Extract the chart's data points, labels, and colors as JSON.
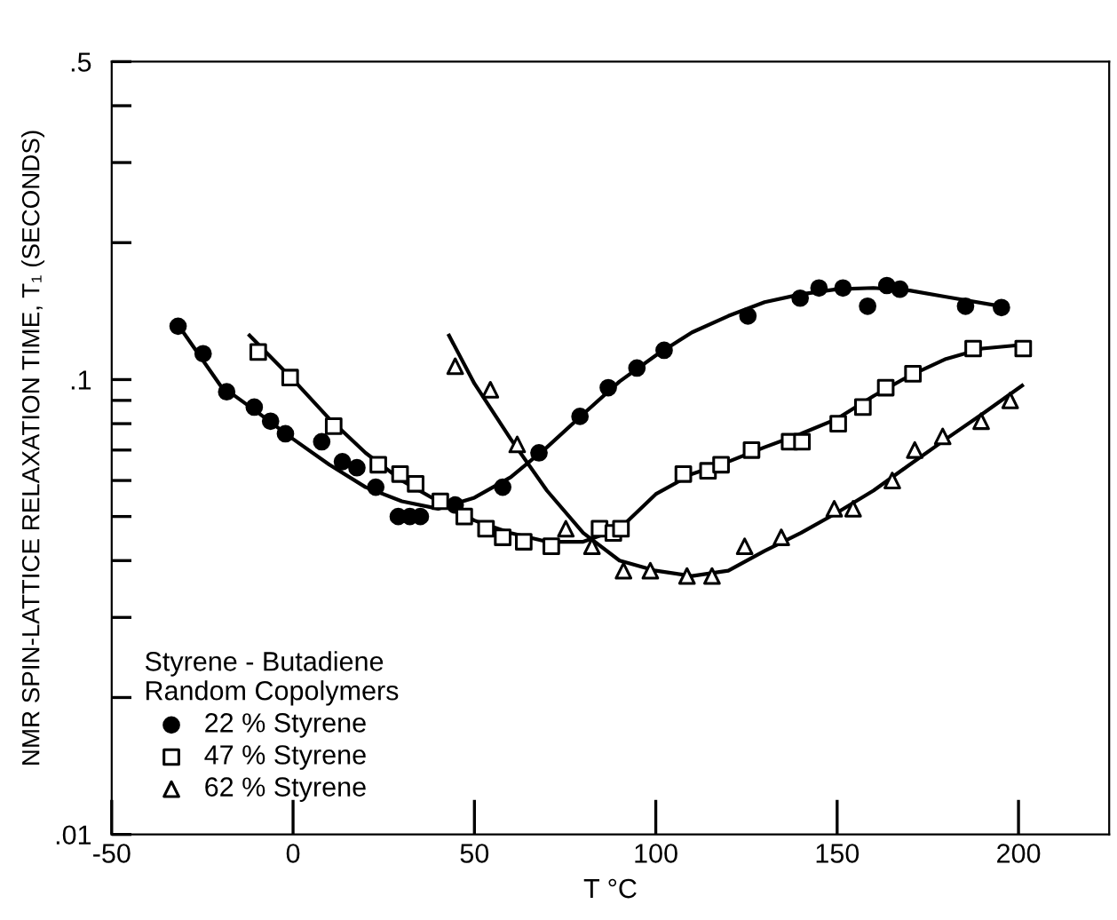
{
  "chart_data": {
    "type": "scatter",
    "xlabel": "T °C",
    "ylabel": "NMR SPIN-LATTICE RELAXATION TIME, T₁ (SECONDS)",
    "legend_title": "Styrene - Butadiene\nRandom Copolymers",
    "legend": "bottom left",
    "log": "y",
    "grid": false,
    "xlim": [
      -50,
      225
    ],
    "xticks": [
      -50,
      0,
      50,
      100,
      150,
      200
    ],
    "ylim": [
      0.01,
      0.5
    ],
    "yticks": [
      {
        "value": 0.01,
        "label": ".01"
      },
      {
        "value": 0.02,
        "label": null
      },
      {
        "value": 0.03,
        "label": null
      },
      {
        "value": 0.04,
        "label": null
      },
      {
        "value": 0.05,
        "label": null
      },
      {
        "value": 0.06,
        "label": null
      },
      {
        "value": 0.07,
        "label": null
      },
      {
        "value": 0.08,
        "label": null
      },
      {
        "value": 0.09,
        "label": null
      },
      {
        "value": 0.1,
        "label": ".1"
      },
      {
        "value": 0.2,
        "label": null
      },
      {
        "value": 0.3,
        "label": null
      },
      {
        "value": 0.4,
        "label": null
      },
      {
        "value": 0.5,
        "label": ".5"
      }
    ],
    "series": [
      {
        "name": "22 % Styrene",
        "marker": "circle",
        "color": "#000000",
        "x": [
          -31.7,
          -24.8,
          -18.3,
          -10.7,
          -6.2,
          -2.1,
          7.9,
          13.6,
          17.6,
          22.8,
          29,
          32.2,
          35.1,
          44.7,
          57.8,
          67.8,
          79.1,
          86.9,
          94.8,
          102.3,
          125.4,
          139.8,
          145,
          151.6,
          158.4,
          163.7,
          167.3,
          185.4,
          195.3
        ],
        "values": [
          0.131,
          0.114,
          0.094,
          0.087,
          0.081,
          0.076,
          0.073,
          0.066,
          0.064,
          0.058,
          0.05,
          0.05,
          0.05,
          0.053,
          0.058,
          0.069,
          0.083,
          0.096,
          0.106,
          0.116,
          0.138,
          0.151,
          0.159,
          0.159,
          0.145,
          0.161,
          0.158,
          0.145,
          0.144
        ]
      },
      {
        "name": "47 % Styrene",
        "marker": "square",
        "color": "#000000",
        "x": [
          -9.6,
          -0.8,
          11.2,
          23.5,
          29.5,
          33.8,
          40.6,
          47.2,
          53.2,
          57.8,
          63.6,
          71.2,
          84.5,
          88.3,
          90.4,
          107.6,
          114.4,
          118,
          126.4,
          136.9,
          140.3,
          150.3,
          157.1,
          163.4,
          170.9,
          187.5,
          201.3
        ],
        "values": [
          0.115,
          0.101,
          0.079,
          0.065,
          0.062,
          0.059,
          0.054,
          0.05,
          0.047,
          0.045,
          0.044,
          0.043,
          0.047,
          0.046,
          0.047,
          0.062,
          0.063,
          0.065,
          0.07,
          0.073,
          0.073,
          0.08,
          0.087,
          0.096,
          0.103,
          0.117,
          0.117
        ]
      },
      {
        "name": "62 % Styrene",
        "marker": "triangle",
        "color": "#000000",
        "x": [
          44.7,
          54.4,
          61.8,
          75.2,
          82.4,
          91.1,
          98.5,
          108.6,
          115.5,
          124.5,
          134.6,
          149.2,
          154.4,
          165.2,
          171.4,
          179.1,
          189.7,
          197.7
        ],
        "values": [
          0.107,
          0.095,
          0.072,
          0.047,
          0.043,
          0.038,
          0.038,
          0.037,
          0.037,
          0.043,
          0.045,
          0.052,
          0.052,
          0.06,
          0.07,
          0.075,
          0.081,
          0.09
        ]
      },
      {
        "type": "line",
        "color": "#000000",
        "line_style": "solid",
        "x": [
          -32,
          -20,
          -10,
          0,
          10,
          20,
          30,
          40,
          50,
          60,
          70,
          80,
          90,
          100,
          110,
          120,
          130,
          140,
          150,
          160,
          170,
          180,
          195
        ],
        "values": [
          0.133,
          0.097,
          0.085,
          0.074,
          0.065,
          0.058,
          0.054,
          0.052,
          0.055,
          0.061,
          0.071,
          0.084,
          0.099,
          0.113,
          0.127,
          0.138,
          0.148,
          0.154,
          0.158,
          0.159,
          0.157,
          0.152,
          0.145
        ]
      },
      {
        "type": "line",
        "color": "#000000",
        "line_style": "solid",
        "x": [
          -12,
          0,
          10,
          20,
          30,
          40,
          50,
          60,
          70,
          80,
          90,
          100,
          110,
          120,
          130,
          140,
          150,
          160,
          170,
          180,
          190,
          200
        ],
        "values": [
          0.125,
          0.1,
          0.082,
          0.069,
          0.06,
          0.054,
          0.049,
          0.046,
          0.044,
          0.044,
          0.047,
          0.056,
          0.062,
          0.066,
          0.071,
          0.076,
          0.082,
          0.092,
          0.102,
          0.111,
          0.117,
          0.119
        ]
      },
      {
        "type": "line",
        "color": "#000000",
        "line_style": "solid",
        "x": [
          43,
          50,
          60,
          70,
          80,
          90,
          100,
          110,
          120,
          130,
          140,
          150,
          160,
          170,
          180,
          190,
          201
        ],
        "values": [
          0.125,
          0.098,
          0.074,
          0.057,
          0.046,
          0.04,
          0.038,
          0.037,
          0.038,
          0.042,
          0.046,
          0.051,
          0.057,
          0.065,
          0.074,
          0.084,
          0.097
        ]
      }
    ]
  }
}
